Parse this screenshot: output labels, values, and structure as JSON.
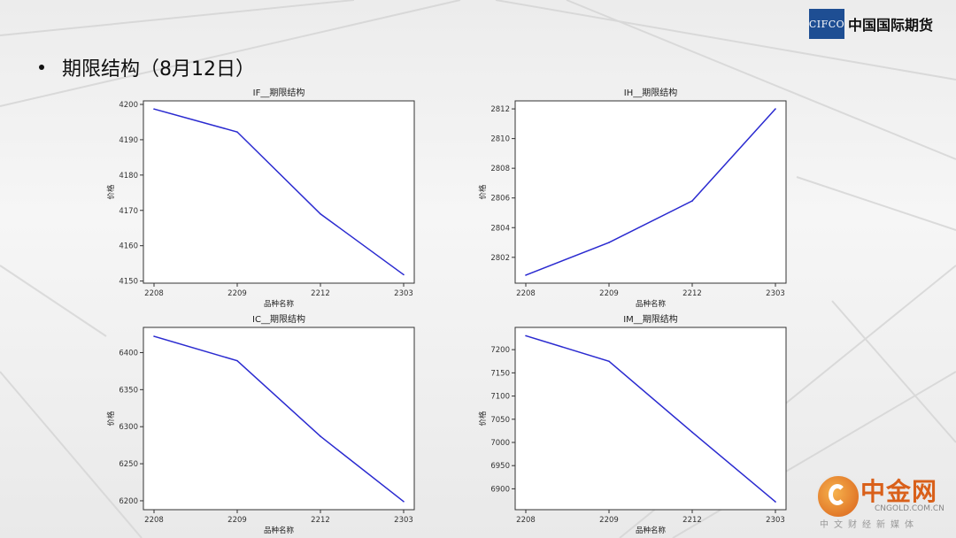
{
  "heading": "期限结构（8月12日）",
  "logo": {
    "box_text": "CIFCO",
    "name": "中国国际期货"
  },
  "watermark": {
    "brand": "中金网",
    "url": "CNGOLD.COM.CN",
    "tagline": "中文财经新媒体"
  },
  "colors": {
    "line": "#2a2ad0",
    "logo_box": "#1e4e93",
    "watermark": "#d9601a"
  },
  "chart_data": [
    {
      "type": "line",
      "title": "IF__期限结构",
      "xlabel": "品种名称",
      "ylabel": "价格",
      "categories": [
        "2208",
        "2209",
        "2212",
        "2303"
      ],
      "values": [
        4198.7,
        4192.2,
        4169.0,
        4151.8
      ],
      "ylim": [
        4149.4,
        4201.0
      ],
      "yticks": [
        4150,
        4160,
        4170,
        4180,
        4190,
        4200
      ]
    },
    {
      "type": "line",
      "title": "IH__期限结构",
      "xlabel": "品种名称",
      "ylabel": "价格",
      "categories": [
        "2208",
        "2209",
        "2212",
        "2303"
      ],
      "values": [
        2800.8,
        2803.0,
        2805.8,
        2812.0
      ],
      "ylim": [
        2800.26,
        2812.54
      ],
      "yticks": [
        2802,
        2804,
        2806,
        2808,
        2810,
        2812
      ]
    },
    {
      "type": "line",
      "title": "IC__期限结构",
      "xlabel": "品种名称",
      "ylabel": "价格",
      "categories": [
        "2208",
        "2209",
        "2212",
        "2303"
      ],
      "values": [
        6422,
        6389,
        6287,
        6199
      ],
      "ylim": [
        6188,
        6434
      ],
      "yticks": [
        6200,
        6250,
        6300,
        6350,
        6400
      ]
    },
    {
      "type": "line",
      "title": "IM__期限结构",
      "xlabel": "品种名称",
      "ylabel": "价格",
      "categories": [
        "2208",
        "2209",
        "2212",
        "2303"
      ],
      "values": [
        7230,
        7175,
        7022,
        6872
      ],
      "ylim": [
        6855,
        7248
      ],
      "yticks": [
        6900,
        6950,
        7000,
        7050,
        7100,
        7150,
        7200
      ]
    }
  ]
}
